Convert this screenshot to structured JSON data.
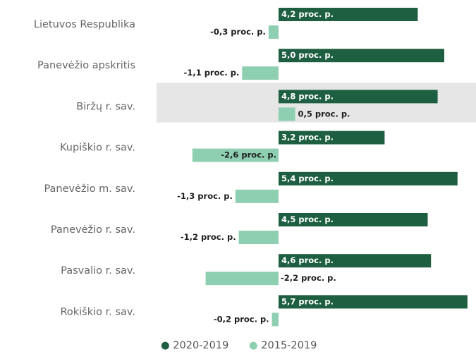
{
  "chart_data": {
    "type": "bar",
    "orientation": "horizontal",
    "categories": [
      "Lietuvos Respublika",
      "Panevėžio apskritis",
      "Biržų r. sav.",
      "Kupiškio r. sav.",
      "Panevėžio m. sav.",
      "Panevėžio r. sav.",
      "Pasvalio r. sav.",
      "Rokiškio r. sav."
    ],
    "highlighted_category": "Biržų r. sav.",
    "series": [
      {
        "name": "2020-2019",
        "color": "#1d5f40",
        "values": [
          4.2,
          5.0,
          4.8,
          3.2,
          5.4,
          4.5,
          4.6,
          5.7
        ],
        "labels": [
          "4,2 proc. p.",
          "5,0 proc. p.",
          "4,8 proc. p.",
          "3,2 proc. p.",
          "5,4 proc. p.",
          "4,5 proc. p.",
          "4,6 proc. p.",
          "5,7 proc. p."
        ]
      },
      {
        "name": "2015-2019",
        "color": "#8fcfb1",
        "values": [
          -0.3,
          -1.1,
          0.5,
          -2.6,
          -1.3,
          -1.2,
          -2.2,
          -0.2
        ],
        "labels": [
          "-0,3 proc. p.",
          "-1,1 proc. p.",
          "0,5 proc. p.",
          "-2,6 proc. p.",
          "-1,3 proc. p.",
          "-1,2 proc. p.",
          "-2,2 proc. p.",
          "-0,2 proc. p."
        ]
      }
    ],
    "unit": "proc. p.",
    "legend": {
      "position": "bottom-center",
      "marker": "●"
    },
    "highlight_color": "#e6e6e6"
  }
}
